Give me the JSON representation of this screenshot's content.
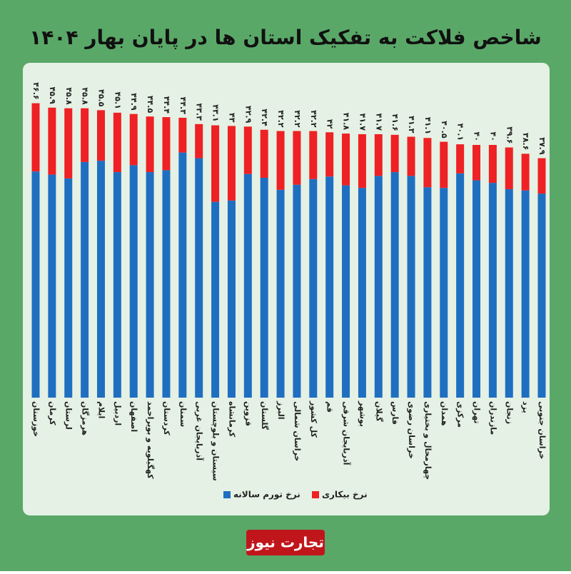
{
  "chart_data": {
    "type": "stacked_bar",
    "title": "شاخص فلاکت به تفکیک استان ها در پایان بهار ۱۴۰۴",
    "brand": "تجارت نیوز",
    "categories": [
      "خوزستان",
      "کرمان",
      "لرستان",
      "هرمزگان",
      "ایلام",
      "اردبیل",
      "اصفهان",
      "کهگیلویه و بویراحمد",
      "کردستان",
      "سمنان",
      "آذربایجان غربی",
      "سیستان و بلوچستان",
      "کرمانشاه",
      "قزوین",
      "گلستان",
      "البرز",
      "خراسان شمالی",
      "کل کشور",
      "قم",
      "آذربایجان شرقی",
      "بوشهر",
      "گیلان",
      "فارس",
      "خراسان رضوی",
      "چهارمحال و بختیاری",
      "همدان",
      "مرکزی",
      "تهران",
      "مازندران",
      "زنجان",
      "یزد",
      "خراسان جنوبی"
    ],
    "series": [
      {
        "name": "نرخ تورم سالانه",
        "color": "#1f6fc1",
        "values": [
          35.8,
          35.3,
          34.7,
          37.3,
          37.5,
          35.7,
          36.8,
          35.7,
          36.0,
          38.8,
          37.9,
          31.0,
          31.2,
          35.4,
          34.8,
          32.9,
          33.7,
          34.6,
          35.0,
          33.6,
          33.2,
          35.1,
          35.7,
          35.1,
          33.3,
          33.2,
          35.5,
          34.4,
          34.0,
          33.0,
          32.8,
          32.3
        ]
      },
      {
        "name": "نرخ بیکاری",
        "color": "#ee2124",
        "values": [
          10.8,
          10.6,
          11.1,
          8.5,
          8.0,
          9.4,
          8.1,
          8.8,
          8.4,
          5.5,
          5.4,
          12.1,
          11.8,
          7.5,
          7.6,
          9.3,
          8.5,
          7.6,
          7.0,
          8.2,
          8.5,
          6.6,
          5.9,
          6.2,
          7.8,
          7.3,
          4.6,
          5.6,
          6.0,
          6.6,
          5.8,
          5.6
        ]
      }
    ],
    "totals": [
      46.6,
      45.9,
      45.8,
      45.8,
      45.5,
      45.1,
      44.9,
      44.5,
      44.4,
      44.3,
      43.3,
      43.1,
      43,
      42.9,
      42.4,
      42.2,
      42.2,
      42.2,
      42,
      41.8,
      41.7,
      41.7,
      41.6,
      41.3,
      41.1,
      40.5,
      40.1,
      40,
      40,
      39.6,
      38.6,
      37.9
    ],
    "total_labels": [
      "۴۶.۶",
      "۴۵.۹",
      "۴۵.۸",
      "۴۵.۸",
      "۴۵.۵",
      "۴۵.۱",
      "۴۴.۹",
      "۴۴.۵",
      "۴۴.۴",
      "۴۴.۳",
      "۴۳.۳",
      "۴۳.۱",
      "۴۳",
      "۴۲.۹",
      "۴۲.۴",
      "۴۲.۲",
      "۴۲.۲",
      "۴۲.۲",
      "۴۲",
      "۴۱.۸",
      "۴۱.۷",
      "۴۱.۷",
      "۴۱.۶",
      "۴۱.۳",
      "۴۱.۱",
      "۴۰.۵",
      "۴۰.۱",
      "۴۰",
      "۴۰",
      "۳۹.۶",
      "۳۸.۶",
      "۳۷.۹"
    ]
  }
}
